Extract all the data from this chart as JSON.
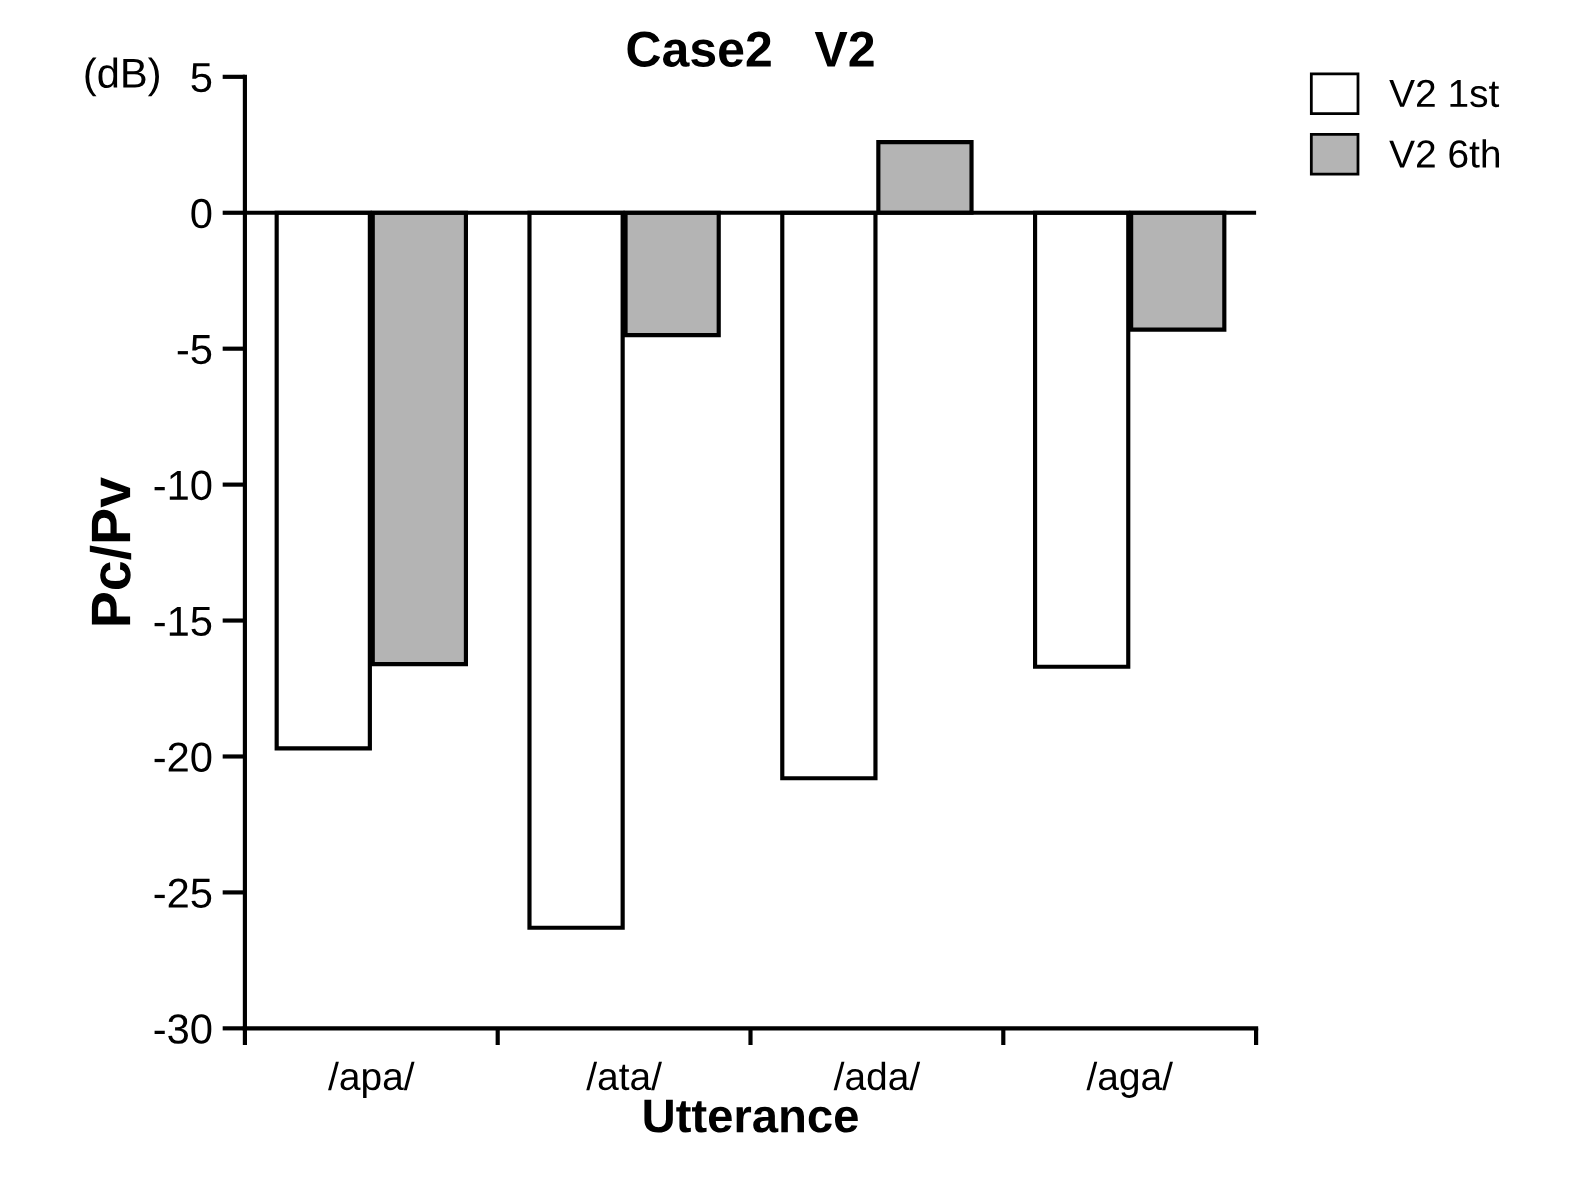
{
  "chart_data": {
    "type": "bar",
    "title": "Case2   V2",
    "xlabel": "Utterance",
    "ylabel": "Pc/Pv",
    "annotations": [
      "(dB)"
    ],
    "categories": [
      "/apa/",
      "/ata/",
      "/ada/",
      "/aga/"
    ],
    "series": [
      {
        "name": "V2 1st",
        "color": "#ffffff",
        "values": [
          -19.7,
          -26.3,
          -20.8,
          -16.7
        ]
      },
      {
        "name": "V2 6th",
        "color": "#b4b4b4",
        "values": [
          -16.6,
          -4.5,
          2.6,
          -4.3
        ]
      }
    ],
    "ylim": [
      -30,
      5
    ],
    "yticks": [
      -30,
      -25,
      -20,
      -15,
      -10,
      -5,
      0,
      5
    ],
    "ref_lines": [
      {
        "axis": "y",
        "value": 0,
        "color": "#000000"
      }
    ],
    "grid": false,
    "legend": "top right"
  }
}
